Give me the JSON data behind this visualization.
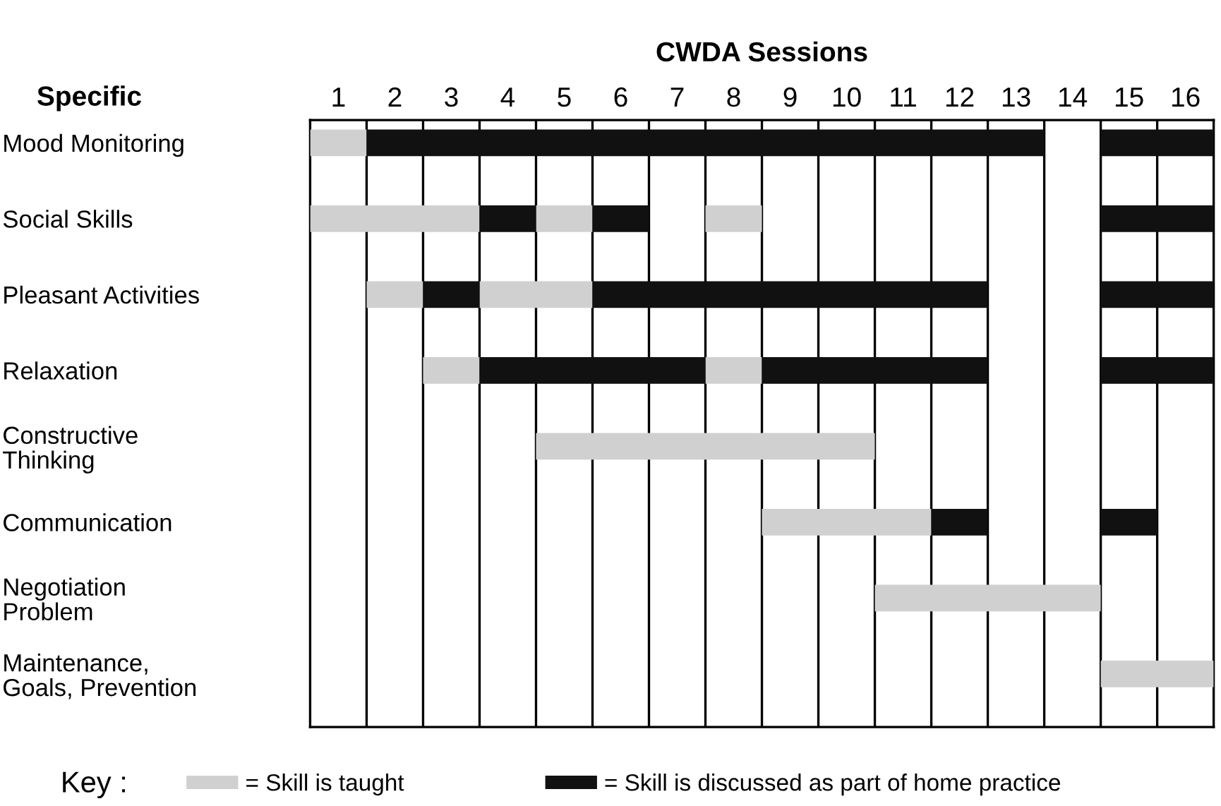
{
  "chart_data": {
    "type": "bar",
    "orientation": "horizontal",
    "title": "CWDA Sessions",
    "ylabel": "Specific",
    "legend_title": "Key :",
    "legend": "bottom",
    "grid": "x",
    "categories": [
      "Mood Monitoring",
      "Social Skills",
      "Pleasant Activities",
      "Relaxation",
      "Constructive\nThinking",
      "Communication",
      "Negotiation\nProblem",
      "Maintenance,\nGoals, Prevention"
    ],
    "xlim": [
      0,
      16
    ],
    "xticks": [
      {
        "value": 0.5,
        "label": "1"
      },
      {
        "value": 1.5,
        "label": "2"
      },
      {
        "value": 2.5,
        "label": "3"
      },
      {
        "value": 3.5,
        "label": "4"
      },
      {
        "value": 4.5,
        "label": "5"
      },
      {
        "value": 5.5,
        "label": "6"
      },
      {
        "value": 6.5,
        "label": "7"
      },
      {
        "value": 7.5,
        "label": "8"
      },
      {
        "value": 8.5,
        "label": "9"
      },
      {
        "value": 9.5,
        "label": "10"
      },
      {
        "value": 10.5,
        "label": "11"
      },
      {
        "value": 11.5,
        "label": "12"
      },
      {
        "value": 12.5,
        "label": "13"
      },
      {
        "value": 13.5,
        "label": "14"
      },
      {
        "value": 14.5,
        "label": "15"
      },
      {
        "value": 15.5,
        "label": "16"
      }
    ],
    "series": [
      {
        "name": "= Skill is taught",
        "color": "#d0d0d0",
        "base": [
          0,
          0,
          1,
          2,
          4,
          8,
          10,
          14
        ],
        "values": [
          1,
          3,
          1,
          1,
          6,
          3,
          4,
          2
        ]
      },
      {
        "color": "#d0d0d0",
        "base": [
          null,
          4,
          3,
          7,
          null,
          null,
          null,
          null
        ],
        "values": [
          null,
          1,
          2,
          1,
          null,
          null,
          null,
          null
        ]
      },
      {
        "color": "#d0d0d0",
        "base": [
          null,
          7,
          null,
          null,
          null,
          null,
          null,
          null
        ],
        "values": [
          null,
          1,
          null,
          null,
          null,
          null,
          null,
          null
        ]
      },
      {
        "name": "= Skill is discussed as part of home practice",
        "color": "#111111",
        "base": [
          1,
          3,
          2,
          3,
          null,
          11,
          null,
          null
        ],
        "values": [
          12,
          1,
          1,
          4,
          null,
          1,
          null,
          null
        ]
      },
      {
        "color": "#111111",
        "base": [
          14,
          5,
          5,
          8,
          null,
          14,
          null,
          null
        ],
        "values": [
          2,
          1,
          7,
          4,
          null,
          1,
          null,
          null
        ]
      },
      {
        "color": "#111111",
        "base": [
          null,
          14,
          14,
          14,
          null,
          null,
          null,
          null
        ],
        "values": [
          null,
          2,
          2,
          2,
          null,
          null,
          null,
          null
        ]
      }
    ]
  }
}
